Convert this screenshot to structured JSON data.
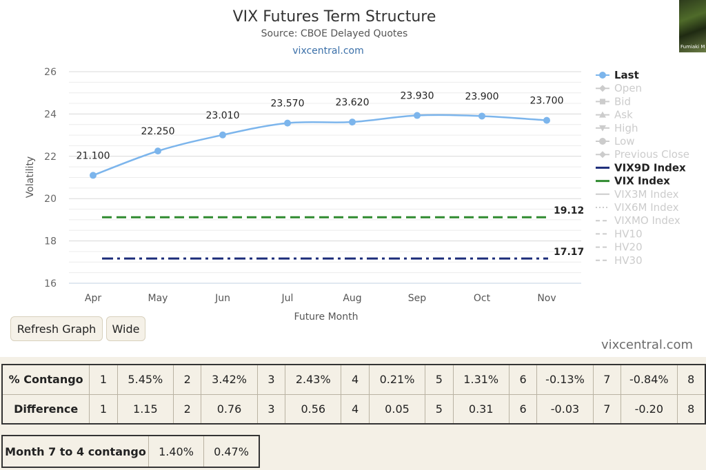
{
  "chart_data": {
    "type": "line",
    "title": "VIX Futures Term Structure",
    "subtitle": "Source: CBOE Delayed Quotes",
    "site_link": "vixcentral.com",
    "ylabel": "Volatility",
    "xlabel": "Future Month",
    "ylim": [
      16,
      26
    ],
    "yticks": [
      "16",
      "18",
      "20",
      "22",
      "24",
      "26"
    ],
    "categories": [
      "Apr",
      "May",
      "Jun",
      "Jul",
      "Aug",
      "Sep",
      "Oct",
      "Nov"
    ],
    "series": [
      {
        "name": "Last",
        "values": [
          21.1,
          22.25,
          23.01,
          23.57,
          23.62,
          23.93,
          23.9,
          23.7
        ],
        "labels": [
          "21.100",
          "22.250",
          "23.010",
          "23.570",
          "23.620",
          "23.930",
          "23.900",
          "23.700"
        ],
        "color": "#7cb5ec"
      },
      {
        "name": "VIX Index",
        "value": 19.12,
        "label": "19.12",
        "color": "#2f8a2f"
      },
      {
        "name": "VIX9D Index",
        "value": 17.17,
        "label": "17.17",
        "color": "#1c2c7a"
      }
    ],
    "legend": [
      {
        "name": "Last",
        "active": true,
        "marker": "circle",
        "color": "#7cb5ec"
      },
      {
        "name": "Open",
        "active": false,
        "marker": "diamond"
      },
      {
        "name": "Bid",
        "active": false,
        "marker": "square"
      },
      {
        "name": "Ask",
        "active": false,
        "marker": "triangle"
      },
      {
        "name": "High",
        "active": false,
        "marker": "triangle-down"
      },
      {
        "name": "Low",
        "active": false,
        "marker": "circle"
      },
      {
        "name": "Previous Close",
        "active": false,
        "marker": "diamond"
      },
      {
        "name": "VIX9D Index",
        "active": true,
        "marker": "solid",
        "color": "#1c2c7a"
      },
      {
        "name": "VIX Index",
        "active": true,
        "marker": "solid",
        "color": "#2f8a2f"
      },
      {
        "name": "VIX3M Index",
        "active": false,
        "marker": "solid"
      },
      {
        "name": "VIX6M Index",
        "active": false,
        "marker": "dotted"
      },
      {
        "name": "VIXMO Index",
        "active": false,
        "marker": "dashed"
      },
      {
        "name": "HV10",
        "active": false,
        "marker": "dashed"
      },
      {
        "name": "HV20",
        "active": false,
        "marker": "dashed"
      },
      {
        "name": "HV30",
        "active": false,
        "marker": "dashed"
      }
    ],
    "legend_placement": "right",
    "grid": true
  },
  "buttons": {
    "refresh": "Refresh Graph",
    "wide": "Wide"
  },
  "footer_link": "vixcentral.com",
  "webcam": {
    "caption": "Fumiaki M"
  },
  "contango_table": {
    "rows": [
      {
        "label": "% Contango",
        "cells": [
          [
            "1",
            "5.45%"
          ],
          [
            "2",
            "3.42%"
          ],
          [
            "3",
            "2.43%"
          ],
          [
            "4",
            "0.21%"
          ],
          [
            "5",
            "1.31%"
          ],
          [
            "6",
            "-0.13%"
          ],
          [
            "7",
            "-0.84%"
          ],
          [
            "8",
            ""
          ]
        ]
      },
      {
        "label": "Difference",
        "cells": [
          [
            "1",
            "1.15"
          ],
          [
            "2",
            "0.76"
          ],
          [
            "3",
            "0.56"
          ],
          [
            "4",
            "0.05"
          ],
          [
            "5",
            "0.31"
          ],
          [
            "6",
            "-0.03"
          ],
          [
            "7",
            "-0.20"
          ],
          [
            "8",
            ""
          ]
        ]
      }
    ]
  },
  "month_table": {
    "label": "Month 7 to 4 contango",
    "values": [
      "1.40%",
      "0.47%"
    ]
  }
}
